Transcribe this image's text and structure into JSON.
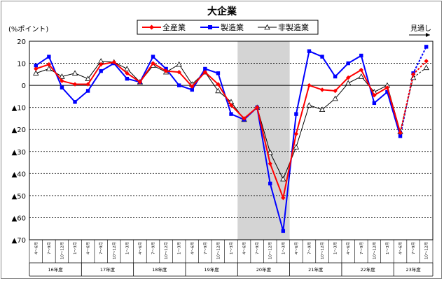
{
  "chart_data": {
    "type": "line",
    "title": "大企業",
    "ylabel": "(%ポイント)",
    "ylim": [
      -70,
      20
    ],
    "yticks": [
      20,
      10,
      0,
      -10,
      -20,
      -30,
      -40,
      -50,
      -60,
      -70
    ],
    "ytick_labels": [
      "20",
      "10",
      "0",
      "▲10",
      "▲20",
      "▲30",
      "▲40",
      "▲50",
      "▲60",
      "▲70"
    ],
    "grid": true,
    "legend_position": "top-center",
    "annotation": "見通し",
    "shaded_period": "20年度",
    "categories": [
      "4～6月",
      "7～9月",
      "10～12月",
      "1～3月",
      "4～6月",
      "7～9月",
      "10～12月",
      "1～3月",
      "4～6月",
      "7～9月",
      "10～12月",
      "1～3月",
      "4～6月",
      "7～9月",
      "10～12月",
      "1～3月",
      "4～6月",
      "7～9月",
      "10～12月",
      "1～3月",
      "4～6月",
      "7～9月",
      "10～12月",
      "1～3月",
      "4～6月",
      "7～9月",
      "10～12月",
      "1～3月",
      "4～6月",
      "7～9月",
      "10～12月"
    ],
    "fiscal_years": [
      {
        "label": "16年度",
        "quarters": 4
      },
      {
        "label": "17年度",
        "quarters": 4
      },
      {
        "label": "18年度",
        "quarters": 4
      },
      {
        "label": "19年度",
        "quarters": 4
      },
      {
        "label": "20年度",
        "quarters": 4
      },
      {
        "label": "21年度",
        "quarters": 4
      },
      {
        "label": "22年度",
        "quarters": 4
      },
      {
        "label": "23年度",
        "quarters": 3
      }
    ],
    "forecast_from_index": 28,
    "series": [
      {
        "name": "全産業",
        "color": "#ff0000",
        "marker": "diamond",
        "values": [
          7.5,
          9.5,
          2.0,
          0.5,
          0.5,
          9.5,
          10.5,
          5.5,
          1.5,
          10.0,
          6.5,
          6.0,
          -0.5,
          6.0,
          0.5,
          -9.0,
          -15.0,
          -10.0,
          -35.5,
          -51.0,
          -22.0,
          0.0,
          -2.0,
          -2.5,
          3.5,
          7.0,
          -4.5,
          -1.0,
          -21.5,
          5.0,
          11.0
        ]
      },
      {
        "name": "製造業",
        "color": "#0000ff",
        "marker": "square",
        "values": [
          9.0,
          13.0,
          -1.0,
          -7.5,
          -2.5,
          6.5,
          10.0,
          3.0,
          1.5,
          13.0,
          7.5,
          0.0,
          -2.0,
          7.5,
          5.5,
          -13.0,
          -15.5,
          -10.0,
          -44.5,
          -66.0,
          -13.0,
          15.5,
          13.0,
          4.0,
          10.0,
          13.5,
          -8.0,
          -3.0,
          -23.0,
          5.5,
          17.5
        ]
      },
      {
        "name": "非製造業",
        "color": "#000000",
        "marker": "triangle",
        "values": [
          5.5,
          7.5,
          4.0,
          5.5,
          3.0,
          11.0,
          10.5,
          7.5,
          1.5,
          9.0,
          6.0,
          9.5,
          0.5,
          6.0,
          -2.5,
          -7.5,
          -15.5,
          -10.0,
          -30.5,
          -42.5,
          -28.0,
          -9.0,
          -11.0,
          -6.0,
          1.0,
          4.0,
          -3.0,
          0.0,
          -21.0,
          3.5,
          8.0
        ]
      }
    ]
  }
}
